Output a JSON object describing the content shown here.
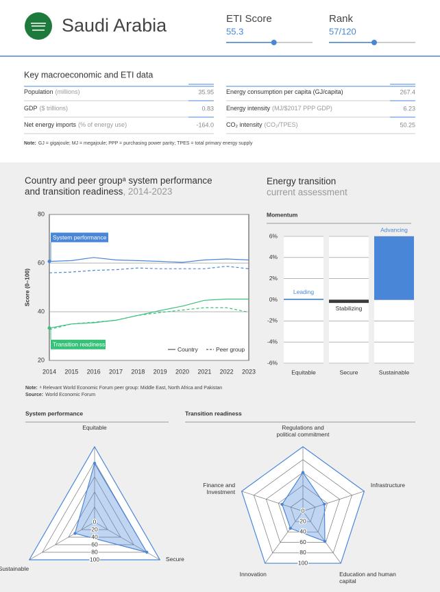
{
  "header": {
    "country": "Saudi Arabia",
    "eti_label": "ETI Score",
    "eti_score": 55.3,
    "rank_label": "Rank",
    "rank": "57/120"
  },
  "macro": {
    "title": "Key macroeconomic and ETI data",
    "rows": [
      {
        "label": "Population",
        "unit": "(millions)",
        "value": "35.95"
      },
      {
        "label": "GDP",
        "unit": "($ trillions)",
        "value": "0.83"
      },
      {
        "label": "Net energy imports",
        "unit": "(% of energy use)",
        "value": "-164.0"
      },
      {
        "label": "Energy consumption per capita (GJ/capita)",
        "unit": "",
        "value": "267.4"
      },
      {
        "label": "Energy intensity",
        "unit": "(MJ/$2017 PPP GDP)",
        "value": "6.23"
      },
      {
        "label": "CO₂ intensity",
        "unit": "(CO₂/TPES)",
        "value": "50.25"
      }
    ]
  },
  "note": {
    "label": "Note:",
    "text": "GJ = gigajoule; MJ = megajoule; PPP = purchasing power parity; TPES = total primary energy supply"
  },
  "chart_data": [
    {
      "type": "line",
      "title": "Country and peer groupᵃ system performance and transition readiness",
      "subtitle": ", 2014-2023",
      "ylabel": "Score (0–100)",
      "x": [
        2014,
        2015,
        2016,
        2017,
        2018,
        2019,
        2020,
        2021,
        2022,
        2023
      ],
      "xlim": [
        2014,
        2023
      ],
      "xticks": [
        2014,
        2015,
        2016,
        2017,
        2018,
        2019,
        2020,
        2021,
        2022,
        2023
      ],
      "ylim": [
        20,
        80
      ],
      "yticks": [
        20,
        40,
        60,
        80
      ],
      "grid": true,
      "series": [
        {
          "name": "System performance",
          "color": "#4a86d8",
          "values": [
            60.7,
            61,
            62.3,
            61.3,
            61,
            60.7,
            60.3,
            61.3,
            61.7,
            61.3
          ],
          "peer_values": [
            56,
            56.3,
            57,
            57.3,
            58,
            57.7,
            57.7,
            57.7,
            58.7,
            57.7
          ]
        },
        {
          "name": "Transition readiness",
          "color": "#36c178",
          "values": [
            33.3,
            35,
            35.5,
            36.5,
            38.5,
            40.5,
            42.3,
            44.7,
            45.2,
            45.2
          ],
          "peer_values": [
            32.7,
            35,
            35.7,
            36.5,
            38.5,
            39.7,
            40.7,
            41.7,
            41.7,
            39.8
          ]
        }
      ],
      "legend": {
        "labels": [
          "Country",
          "Peer group"
        ],
        "position": "lower right"
      }
    },
    {
      "type": "bar",
      "title": "Energy transition",
      "subtitle": "current assessment",
      "panel_title": "Momentum",
      "categories": [
        "Equitable",
        "Secure",
        "Sustainable"
      ],
      "values": [
        0.1,
        -0.3,
        6
      ],
      "status_labels": [
        "Leading",
        "Stabilizing",
        "Advancing"
      ],
      "colors": [
        "#4a86d8",
        "#3a3a3a",
        "#4a86d8"
      ],
      "ylim": [
        -6,
        6
      ],
      "yticks": [
        {
          "value": -6,
          "label": "-6%"
        },
        {
          "value": -4,
          "label": "-4%"
        },
        {
          "value": -2,
          "label": "-2%"
        },
        {
          "value": 0,
          "label": "0%"
        },
        {
          "value": 2,
          "label": "2%"
        },
        {
          "value": 4,
          "label": "4%"
        },
        {
          "value": 6,
          "label": "6%"
        }
      ],
      "grid": true
    },
    {
      "type": "radar",
      "title": "System performance",
      "axes": [
        "Equitable",
        "Secure",
        "Sustainable"
      ],
      "values": [
        78,
        80,
        30
      ],
      "rlim": [
        0,
        100
      ],
      "rticks": [
        0,
        20,
        40,
        60,
        80,
        100
      ],
      "color": "#4a86d8"
    },
    {
      "type": "radar",
      "title": "Transition readiness",
      "axes": [
        "Regulations and political commitment",
        "Infrastructure",
        "Education and human capital",
        "Innovation",
        "Finance and Investment"
      ],
      "values": [
        60,
        35,
        58,
        33,
        34
      ],
      "rlim": [
        0,
        100
      ],
      "rticks": [
        0,
        20,
        40,
        60,
        80,
        100
      ],
      "color": "#4a86d8"
    }
  ],
  "chart_notes": {
    "note_label": "Note:",
    "note": "ᵃ Relevant World Economic Forum peer group: Middle East, North Africa and Pakistan",
    "source_label": "Source:",
    "source": "World Economic Forum"
  }
}
